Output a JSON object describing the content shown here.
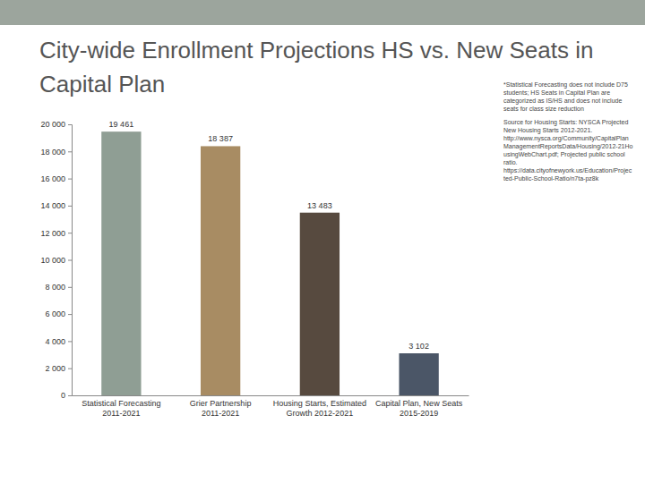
{
  "chart_data": {
    "type": "bar",
    "title": "City-wide Enrollment Projections HS vs. New Seats in Capital Plan",
    "annotations": [
      "*Statistical Forecasting does not include D75 students; HS Seats in Capital Plan are categorized as IS/HS and does not include seats for class size reduction",
      "Source for Housing Starts: NYSCA Projected New Housing Starts 2012-2021. http://www.nysca.org/Community/CapitalPlanManagementReportsData/Housing/2012-21HousingWebChart.pdf; Projected public school ratio. https://data.cityofnewyork.us/Education/Projected-Public-School-Ratio/n7ta-pz8k"
    ],
    "categories": [
      "Statistical Forecasting 2011-2021",
      "Grier Partnership 2011-2021",
      "Housing Starts, Estimated Growth 2012-2021",
      "Capital Plan, New Seats 2015-2019"
    ],
    "values": [
      19461,
      18387,
      13483,
      3102
    ],
    "value_labels": [
      "19 461",
      "18 387",
      "13 483",
      "3 102"
    ],
    "colors": [
      "#8f9e94",
      "#a88c63",
      "#574a3f",
      "#4b5667"
    ],
    "ylim": [
      0,
      20000
    ],
    "yticks": [
      0,
      {
        "value": 2000,
        "label": "2 000"
      },
      {
        "value": 4000,
        "label": "4 000"
      },
      {
        "value": 6000,
        "label": "6 000"
      },
      {
        "value": 8000,
        "label": "8 000"
      },
      {
        "value": 10000,
        "label": "10 000"
      },
      {
        "value": 12000,
        "label": "12 000"
      },
      {
        "value": 14000,
        "label": "14 000"
      },
      {
        "value": 16000,
        "label": "16 000"
      },
      {
        "value": 18000,
        "label": "18 000"
      },
      {
        "value": 20000,
        "label": "20 000"
      }
    ],
    "data_labels": true,
    "grid": false
  }
}
